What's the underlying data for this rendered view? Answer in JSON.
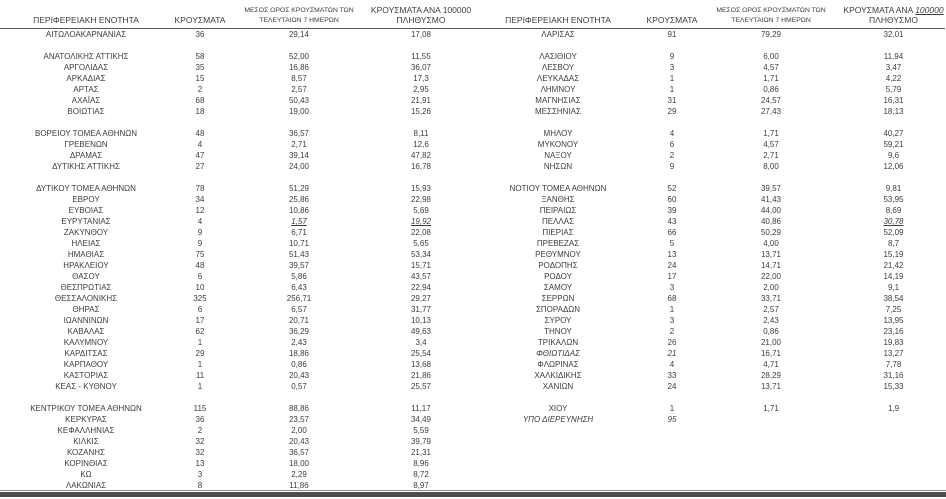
{
  "header": {
    "region": "ΠΕΡΙΦΕΡΕΙΑΚΗ ΕΝΟΤΗΤΑ",
    "cases": "ΚΡΟΥΣΜΑΤΑ",
    "avg_line1": "ΜΕΣΟΣ ΟΡΟΣ ΚΡΟΥΣΜΑΤΩΝ ΤΩΝ",
    "avg_line2": "ΤΕΛΕΥΤΑΙΩΝ 7 ΗΜΕΡΩΝ",
    "per100k_prefix": "ΚΡΟΥΣΜΑΤΑ ΑΝΑ",
    "per100k_number": "100000",
    "per100k_line2": "ΠΛΗΘΥΣΜΟ"
  },
  "rows": [
    {
      "left": {
        "region": "ΑΙΤΩΛΟΑΚΑΡΝΑΝΙΑΣ",
        "cases": "36",
        "avg": "29,14",
        "per100k": "17,08"
      },
      "right": {
        "region": "ΛΑΡΙΣΑΣ",
        "cases": "91",
        "avg": "79,29",
        "per100k": "32,01"
      }
    },
    {
      "left": null,
      "right": null
    },
    {
      "left": {
        "region": "ΑΝΑΤΟΛΙΚΗΣ ΑΤΤΙΚΗΣ",
        "cases": "58",
        "avg": "52,00",
        "per100k": "11,55"
      },
      "right": {
        "region": "ΛΑΣΙΘΙΟΥ",
        "cases": "9",
        "avg": "6,00",
        "per100k": "11,94"
      }
    },
    {
      "left": {
        "region": "ΑΡΓΟΛΙΔΑΣ",
        "cases": "35",
        "avg": "16,86",
        "per100k": "36,07"
      },
      "right": {
        "region": "ΛΕΣΒΟΥ",
        "cases": "3",
        "avg": "4,57",
        "per100k": "3,47"
      }
    },
    {
      "left": {
        "region": "ΑΡΚΑΔΙΑΣ",
        "cases": "15",
        "avg": "8,57",
        "per100k": "17,3"
      },
      "right": {
        "region": "ΛΕΥΚΑΔΑΣ",
        "cases": "1",
        "avg": "1,71",
        "per100k": "4,22"
      }
    },
    {
      "left": {
        "region": "ΑΡΤΑΣ",
        "cases": "2",
        "avg": "2,57",
        "per100k": "2,95"
      },
      "right": {
        "region": "ΛΗΜΝΟΥ",
        "cases": "1",
        "avg": "0,86",
        "per100k": "5,79"
      }
    },
    {
      "left": {
        "region": "ΑΧΑΪΑΣ",
        "cases": "68",
        "avg": "50,43",
        "per100k": "21,91"
      },
      "right": {
        "region": "ΜΑΓΝΗΣΙΑΣ",
        "cases": "31",
        "avg": "24,57",
        "per100k": "16,31"
      }
    },
    {
      "left": {
        "region": "ΒΟΙΩΤΙΑΣ",
        "cases": "18",
        "avg": "19,00",
        "per100k": "15,26"
      },
      "right": {
        "region": "ΜΕΣΣΗΝΙΑΣ",
        "cases": "29",
        "avg": "27,43",
        "per100k": "18,13"
      }
    },
    {
      "left": null,
      "right": null
    },
    {
      "left": {
        "region": "ΒΟΡΕΙΟΥ ΤΟΜΕΑ ΑΘΗΝΩΝ",
        "cases": "48",
        "avg": "36,57",
        "per100k": "8,11"
      },
      "right": {
        "region": "ΜΗΛΟΥ",
        "cases": "4",
        "avg": "1,71",
        "per100k": "40,27"
      }
    },
    {
      "left": {
        "region": "ΓΡΕΒΕΝΩΝ",
        "cases": "4",
        "avg": "2,71",
        "per100k": "12,6"
      },
      "right": {
        "region": "ΜΥΚΟΝΟΥ",
        "cases": "6",
        "avg": "4,57",
        "per100k": "59,21"
      }
    },
    {
      "left": {
        "region": "ΔΡΑΜΑΣ",
        "cases": "47",
        "avg": "39,14",
        "per100k": "47,82"
      },
      "right": {
        "region": "ΝΑΞΟΥ",
        "cases": "2",
        "avg": "2,71",
        "per100k": "9,6"
      }
    },
    {
      "left": {
        "region": "ΔΥΤΙΚΗΣ ΑΤΤΙΚΗΣ",
        "cases": "27",
        "avg": "24,00",
        "per100k": "16,78"
      },
      "right": {
        "region": "ΝΗΣΩΝ",
        "cases": "9",
        "avg": "8,00",
        "per100k": "12,06"
      }
    },
    {
      "left": null,
      "right": null
    },
    {
      "left": {
        "region": "ΔΥΤΙΚΟΥ ΤΟΜΕΑ ΑΘΗΝΩΝ",
        "cases": "78",
        "avg": "51,29",
        "per100k": "15,93"
      },
      "right": {
        "region": "ΝΟΤΙΟΥ ΤΟΜΕΑ ΑΘΗΝΩΝ",
        "cases": "52",
        "avg": "39,57",
        "per100k": "9,81"
      }
    },
    {
      "left": {
        "region": "ΕΒΡΟΥ",
        "cases": "34",
        "avg": "25,86",
        "per100k": "22,98"
      },
      "right": {
        "region": "ΞΑΝΘΗΣ",
        "cases": "60",
        "avg": "41,43",
        "per100k": "53,95"
      }
    },
    {
      "left": {
        "region": "ΕΥΒΟΙΑΣ",
        "cases": "12",
        "avg": "10,86",
        "per100k": "5,69"
      },
      "right": {
        "region": "ΠΕΙΡΑΙΩΣ",
        "cases": "39",
        "avg": "44,00",
        "per100k": "8,69"
      }
    },
    {
      "left": {
        "region": "ΕΥΡΥΤΑΝΙΑΣ",
        "cases": "4",
        "avg": "1,57",
        "per100k": "19,92",
        "styles": {
          "avg": "iu",
          "per100k": "iu"
        }
      },
      "right": {
        "region": "ΠΕΛΛΑΣ",
        "cases": "43",
        "avg": "40,86",
        "per100k": "30,78",
        "styles": {
          "per100k": "iu"
        }
      }
    },
    {
      "left": {
        "region": "ΖΑΚΥΝΘΟΥ",
        "cases": "9",
        "avg": "6,71",
        "per100k": "22,08"
      },
      "right": {
        "region": "ΠΙΕΡΙΑΣ",
        "cases": "66",
        "avg": "50,29",
        "per100k": "52,09"
      }
    },
    {
      "left": {
        "region": "ΗΛΕΙΑΣ",
        "cases": "9",
        "avg": "10,71",
        "per100k": "5,65"
      },
      "right": {
        "region": "ΠΡΕΒΕΖΑΣ",
        "cases": "5",
        "avg": "4,00",
        "per100k": "8,7"
      }
    },
    {
      "left": {
        "region": "ΗΜΑΘΙΑΣ",
        "cases": "75",
        "avg": "51,43",
        "per100k": "53,34"
      },
      "right": {
        "region": "ΡΕΘΥΜΝΟΥ",
        "cases": "13",
        "avg": "13,71",
        "per100k": "15,19"
      }
    },
    {
      "left": {
        "region": "ΗΡΑΚΛΕΙΟΥ",
        "cases": "48",
        "avg": "39,57",
        "per100k": "15,71"
      },
      "right": {
        "region": "ΡΟΔΟΠΗΣ",
        "cases": "24",
        "avg": "14,71",
        "per100k": "21,42"
      }
    },
    {
      "left": {
        "region": "ΘΑΣΟΥ",
        "cases": "6",
        "avg": "5,86",
        "per100k": "43,57"
      },
      "right": {
        "region": "ΡΟΔΟΥ",
        "cases": "17",
        "avg": "22,00",
        "per100k": "14,19"
      }
    },
    {
      "left": {
        "region": "ΘΕΣΠΡΩΤΙΑΣ",
        "cases": "10",
        "avg": "6,43",
        "per100k": "22,94"
      },
      "right": {
        "region": "ΣΑΜΟΥ",
        "cases": "3",
        "avg": "2,00",
        "per100k": "9,1"
      }
    },
    {
      "left": {
        "region": "ΘΕΣΣΑΛΟΝΙΚΗΣ",
        "cases": "325",
        "avg": "256,71",
        "per100k": "29,27"
      },
      "right": {
        "region": "ΣΕΡΡΩΝ",
        "cases": "68",
        "avg": "33,71",
        "per100k": "38,54"
      }
    },
    {
      "left": {
        "region": "ΘΗΡΑΣ",
        "cases": "6",
        "avg": "6,57",
        "per100k": "31,77"
      },
      "right": {
        "region": "ΣΠΟΡΑΔΩΝ",
        "cases": "1",
        "avg": "2,57",
        "per100k": "7,25"
      }
    },
    {
      "left": {
        "region": "ΙΩΑΝΝΙΝΩΝ",
        "cases": "17",
        "avg": "20,71",
        "per100k": "10,13"
      },
      "right": {
        "region": "ΣΥΡΟΥ",
        "cases": "3",
        "avg": "2,43",
        "per100k": "13,95"
      }
    },
    {
      "left": {
        "region": "ΚΑΒΑΛΑΣ",
        "cases": "62",
        "avg": "36,29",
        "per100k": "49,63"
      },
      "right": {
        "region": "ΤΗΝΟΥ",
        "cases": "2",
        "avg": "0,86",
        "per100k": "23,16"
      }
    },
    {
      "left": {
        "region": "ΚΑΛΥΜΝΟΥ",
        "cases": "1",
        "avg": "2,43",
        "per100k": "3,4"
      },
      "right": {
        "region": "ΤΡΙΚΑΛΩΝ",
        "cases": "26",
        "avg": "21,00",
        "per100k": "19,83"
      }
    },
    {
      "left": {
        "region": "ΚΑΡΔΙΤΣΑΣ",
        "cases": "29",
        "avg": "18,86",
        "per100k": "25,54"
      },
      "right": {
        "region": "ΦΘΙΩΤΙΔΑΣ",
        "cases": "21",
        "avg": "16,71",
        "per100k": "13,27",
        "styles": {
          "region": "i",
          "cases": "i"
        }
      }
    },
    {
      "left": {
        "region": "ΚΑΡΠΑΘΟΥ",
        "cases": "1",
        "avg": "0,86",
        "per100k": "13,68"
      },
      "right": {
        "region": "ΦΛΩΡΙΝΑΣ",
        "cases": "4",
        "avg": "4,71",
        "per100k": "7,78"
      }
    },
    {
      "left": {
        "region": "ΚΑΣΤΟΡΙΑΣ",
        "cases": "11",
        "avg": "20,43",
        "per100k": "21,86"
      },
      "right": {
        "region": "ΧΑΛΚΙΔΙΚΗΣ",
        "cases": "33",
        "avg": "28,29",
        "per100k": "31,16"
      }
    },
    {
      "left": {
        "region": "ΚΕΑΣ - ΚΥΘΝΟΥ",
        "cases": "1",
        "avg": "0,57",
        "per100k": "25,57"
      },
      "right": {
        "region": "ΧΑΝΙΩΝ",
        "cases": "24",
        "avg": "13,71",
        "per100k": "15,33"
      }
    },
    {
      "left": null,
      "right": null
    },
    {
      "left": {
        "region": "ΚΕΝΤΡΙΚΟΥ ΤΟΜΕΑ ΑΘΗΝΩΝ",
        "cases": "115",
        "avg": "88,86",
        "per100k": "11,17"
      },
      "right": {
        "region": "ΧΙΟΥ",
        "cases": "1",
        "avg": "1,71",
        "per100k": "1,9"
      }
    },
    {
      "left": {
        "region": "ΚΕΡΚΥΡΑΣ",
        "cases": "36",
        "avg": "23,57",
        "per100k": "34,49"
      },
      "right": {
        "region": "ΥΠΟ ΔΙΕΡΕΥΝΗΣΗ",
        "cases": "95",
        "avg": "",
        "per100k": "",
        "styles": {
          "region": "i",
          "cases": "i"
        }
      }
    },
    {
      "left": {
        "region": "ΚΕΦΑΛΛΗΝΙΑΣ",
        "cases": "2",
        "avg": "2,00",
        "per100k": "5,59"
      },
      "right": null
    },
    {
      "left": {
        "region": "ΚΙΛΚΙΣ",
        "cases": "32",
        "avg": "20,43",
        "per100k": "39,79"
      },
      "right": null
    },
    {
      "left": {
        "region": "ΚΟΖΑΝΗΣ",
        "cases": "32",
        "avg": "36,57",
        "per100k": "21,31"
      },
      "right": null
    },
    {
      "left": {
        "region": "ΚΟΡΙΝΘΙΑΣ",
        "cases": "13",
        "avg": "18,00",
        "per100k": "8,96"
      },
      "right": null
    },
    {
      "left": {
        "region": "ΚΩ",
        "cases": "3",
        "avg": "2,29",
        "per100k": "8,72"
      },
      "right": null
    },
    {
      "left": {
        "region": "ΛΑΚΩΝΙΑΣ",
        "cases": "8",
        "avg": "11,86",
        "per100k": "8,97"
      },
      "right": null
    }
  ]
}
